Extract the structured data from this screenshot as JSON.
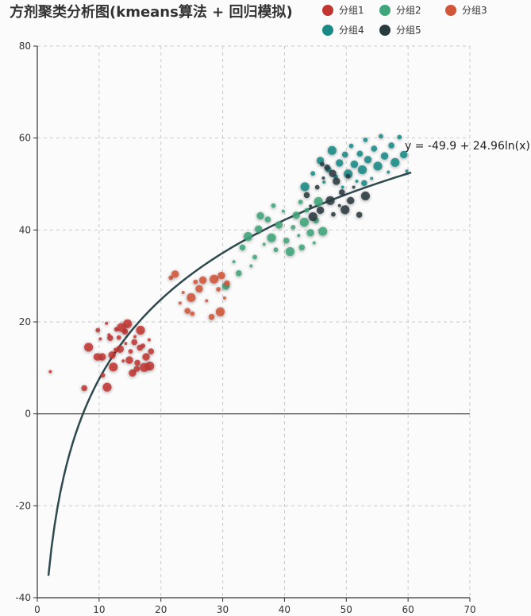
{
  "chart_data": {
    "type": "scatter",
    "title": "方剂聚类分析图(kmeans算法 + 回归模拟)",
    "xlim": [
      0,
      70
    ],
    "ylim": [
      -40,
      80
    ],
    "x_ticks": [
      0,
      10,
      20,
      30,
      40,
      50,
      60,
      70
    ],
    "y_ticks": [
      -40,
      -20,
      0,
      20,
      40,
      60,
      80
    ],
    "grid": true,
    "legend_position": "top-right",
    "series": [
      {
        "name": "分组1",
        "color": "#c23531",
        "points": [
          [
            2.1,
            9.2
          ],
          [
            7.6,
            5.6
          ],
          [
            8.3,
            14.5
          ],
          [
            9.8,
            18.2
          ],
          [
            10.5,
            12.4
          ],
          [
            11.2,
            19.7
          ],
          [
            11.8,
            16.5
          ],
          [
            12.3,
            10.2
          ],
          [
            12.8,
            18.4
          ],
          [
            13.4,
            14.1
          ],
          [
            13.9,
            11.5
          ],
          [
            14.2,
            17.9
          ],
          [
            14.6,
            19.6
          ],
          [
            15.1,
            13.6
          ],
          [
            15.4,
            8.9
          ],
          [
            15.8,
            16.8
          ],
          [
            16.2,
            11.1
          ],
          [
            16.7,
            18.2
          ],
          [
            17.1,
            14.8
          ],
          [
            17.6,
            12.4
          ],
          [
            18.1,
            16.1
          ],
          [
            18.4,
            13.6
          ],
          [
            11.3,
            5.8
          ],
          [
            10.6,
            8.4
          ],
          [
            12.1,
            12.8
          ],
          [
            14.3,
            15.3
          ],
          [
            16.1,
            9.8
          ],
          [
            18.2,
            10.4
          ],
          [
            13.2,
            16.6
          ],
          [
            9.7,
            12.4
          ],
          [
            11.6,
            17.2
          ],
          [
            15.7,
            15.6
          ],
          [
            17.3,
            10.1
          ],
          [
            12.7,
            13.9
          ],
          [
            14.9,
            11.7
          ],
          [
            10.2,
            16.3
          ],
          [
            16.6,
            14.4
          ],
          [
            13.6,
            18.8
          ]
        ]
      },
      {
        "name": "分组2",
        "color": "#3ea67a",
        "points": [
          [
            30.5,
            27.8
          ],
          [
            31.8,
            33.1
          ],
          [
            33.2,
            36.2
          ],
          [
            34.1,
            38.6
          ],
          [
            35.2,
            34.1
          ],
          [
            35.8,
            40.2
          ],
          [
            36.7,
            36.9
          ],
          [
            37.3,
            42.3
          ],
          [
            37.9,
            38.3
          ],
          [
            38.6,
            35.7
          ],
          [
            39.1,
            41.1
          ],
          [
            39.8,
            44.1
          ],
          [
            40.3,
            37.7
          ],
          [
            40.9,
            35.3
          ],
          [
            41.4,
            40.6
          ],
          [
            41.9,
            43.2
          ],
          [
            42.3,
            38.8
          ],
          [
            42.8,
            36.2
          ],
          [
            43.2,
            41.7
          ],
          [
            43.6,
            44.3
          ],
          [
            44.2,
            39.4
          ],
          [
            44.8,
            37.2
          ],
          [
            45.1,
            42.1
          ],
          [
            45.5,
            46.2
          ],
          [
            38.2,
            45.3
          ],
          [
            36.1,
            43.1
          ],
          [
            34.6,
            32.2
          ],
          [
            32.6,
            30.6
          ],
          [
            46.2,
            39.7
          ],
          [
            42.6,
            46.1
          ]
        ]
      },
      {
        "name": "分组3",
        "color": "#d2563a",
        "points": [
          [
            21.6,
            29.6
          ],
          [
            22.3,
            30.4
          ],
          [
            23.6,
            26.4
          ],
          [
            24.3,
            22.4
          ],
          [
            24.9,
            25.3
          ],
          [
            25.6,
            28.7
          ],
          [
            26.2,
            27.2
          ],
          [
            27.4,
            24.6
          ],
          [
            28.2,
            21.1
          ],
          [
            28.6,
            29.3
          ],
          [
            29.3,
            27.1
          ],
          [
            29.8,
            30.1
          ],
          [
            30.3,
            25.2
          ],
          [
            30.7,
            28.4
          ],
          [
            29.6,
            22.2
          ],
          [
            25.1,
            21.8
          ],
          [
            26.8,
            29.1
          ],
          [
            23.1,
            24.1
          ]
        ]
      },
      {
        "name": "分组4",
        "color": "#1a8a86",
        "points": [
          [
            43.3,
            49.4
          ],
          [
            44.6,
            52.3
          ],
          [
            45.8,
            55.1
          ],
          [
            46.4,
            50.4
          ],
          [
            47.1,
            53.2
          ],
          [
            47.7,
            57.3
          ],
          [
            48.3,
            51.6
          ],
          [
            48.9,
            54.6
          ],
          [
            49.4,
            49.3
          ],
          [
            49.8,
            56.4
          ],
          [
            50.3,
            52.2
          ],
          [
            50.8,
            58.3
          ],
          [
            51.3,
            54.3
          ],
          [
            51.7,
            50.6
          ],
          [
            52.2,
            56.6
          ],
          [
            52.6,
            53.1
          ],
          [
            53.1,
            59.6
          ],
          [
            53.5,
            55.3
          ],
          [
            54.1,
            51.2
          ],
          [
            54.5,
            57.7
          ],
          [
            55.1,
            53.9
          ],
          [
            55.6,
            60.4
          ],
          [
            56.2,
            56.1
          ],
          [
            56.8,
            52.6
          ],
          [
            57.3,
            58.4
          ],
          [
            57.9,
            54.7
          ],
          [
            58.6,
            60.2
          ],
          [
            59.3,
            56.4
          ],
          [
            59.8,
            52.8
          ],
          [
            52.9,
            50.2
          ]
        ]
      },
      {
        "name": "分组5",
        "color": "#283b3f",
        "points": [
          [
            43.6,
            47.6
          ],
          [
            44.6,
            42.9
          ],
          [
            45.3,
            49.3
          ],
          [
            45.8,
            44.3
          ],
          [
            46.3,
            51.3
          ],
          [
            46.9,
            53.6
          ],
          [
            47.4,
            46.4
          ],
          [
            47.9,
            43.4
          ],
          [
            48.4,
            50.6
          ],
          [
            48.9,
            45.3
          ],
          [
            49.3,
            48.2
          ],
          [
            49.8,
            44.4
          ],
          [
            50.3,
            51.7
          ],
          [
            50.7,
            46.4
          ],
          [
            51.2,
            49.3
          ],
          [
            52.1,
            43.3
          ],
          [
            53.1,
            47.4
          ],
          [
            46.1,
            54.3
          ],
          [
            47.8,
            52.3
          ],
          [
            44.2,
            45.2
          ]
        ]
      }
    ],
    "regression": {
      "equation": "y = -49.9 + 24.96ln(x)",
      "intercept": -49.9,
      "slope": 24.96,
      "x_range": [
        1.8,
        60.5
      ],
      "color": "#2f4a4f"
    }
  }
}
